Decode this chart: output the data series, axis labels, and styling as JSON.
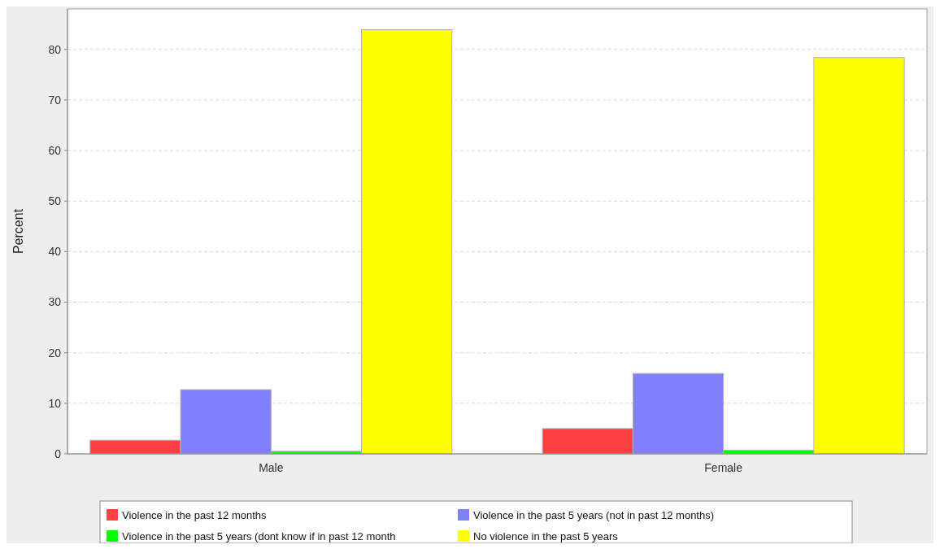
{
  "chart_data": {
    "type": "bar",
    "ylabel": "Percent",
    "categories": [
      "Male",
      "Female"
    ],
    "series": [
      {
        "name": "Violence in the past 12 months",
        "color": "#ff4040",
        "values": [
          2.7,
          5.0
        ]
      },
      {
        "name": "Violence in the past 5 years (not in past 12 months)",
        "color": "#8080ff",
        "values": [
          12.7,
          15.9
        ]
      },
      {
        "name": "Violence in the past 5 years (dont know if in past 12 month",
        "color": "#00ff00",
        "values": [
          0.5,
          0.7
        ]
      },
      {
        "name": "No violence in the past 5 years",
        "color": "#ffff00",
        "values": [
          83.9,
          78.4
        ]
      }
    ],
    "ylim": [
      0,
      88
    ],
    "yticks": [
      0,
      10,
      20,
      30,
      40,
      50,
      60,
      70,
      80
    ],
    "grid": "y",
    "legend": "bottom"
  }
}
